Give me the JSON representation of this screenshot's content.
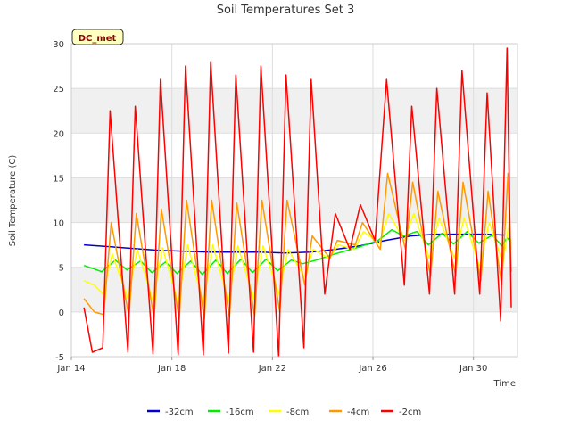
{
  "chart_data": {
    "type": "line",
    "title": "Soil Temperatures Set 3",
    "xlabel": "Time",
    "ylabel": "Soil Temperature (C)",
    "xlim": [
      "2024-01-14",
      "2024-01-31T18:00"
    ],
    "ylim": [
      -5,
      30
    ],
    "x_ticks": [
      {
        "date": "2024-01-14",
        "label": "Jan 14"
      },
      {
        "date": "2024-01-18",
        "label": "Jan 18"
      },
      {
        "date": "2024-01-22",
        "label": "Jan 22"
      },
      {
        "date": "2024-01-26",
        "label": "Jan 26"
      },
      {
        "date": "2024-01-30",
        "label": "Jan 30"
      }
    ],
    "y_ticks": [
      -5,
      0,
      5,
      10,
      15,
      20,
      25,
      30
    ],
    "grid": true,
    "banded_background": true,
    "legend_position": "bottom",
    "site_badge": "DC_met",
    "series": [
      {
        "name": "-32cm",
        "color": "#0000cc",
        "points": [
          [
            "2024-01-14T12:00",
            7.5
          ],
          [
            "2024-01-15T12:00",
            7.3
          ],
          [
            "2024-01-16T12:00",
            7.1
          ],
          [
            "2024-01-17T12:00",
            6.9
          ],
          [
            "2024-01-18T12:00",
            6.8
          ],
          [
            "2024-01-19T12:00",
            6.7
          ],
          [
            "2024-01-20T12:00",
            6.7
          ],
          [
            "2024-01-21T12:00",
            6.7
          ],
          [
            "2024-01-22T12:00",
            6.6
          ],
          [
            "2024-01-23T12:00",
            6.7
          ],
          [
            "2024-01-24T12:00",
            7.0
          ],
          [
            "2024-01-25T12:00",
            7.4
          ],
          [
            "2024-01-26T12:00",
            8.0
          ],
          [
            "2024-01-27T12:00",
            8.5
          ],
          [
            "2024-01-28T12:00",
            8.7
          ],
          [
            "2024-01-29T12:00",
            8.7
          ],
          [
            "2024-01-30T12:00",
            8.7
          ],
          [
            "2024-01-31T06:00",
            8.6
          ]
        ]
      },
      {
        "name": "-16cm",
        "color": "#00ee00",
        "points": [
          [
            "2024-01-14T12:00",
            5.2
          ],
          [
            "2024-01-14T22:00",
            4.8
          ],
          [
            "2024-01-15T05:00",
            4.5
          ],
          [
            "2024-01-15T18:00",
            5.8
          ],
          [
            "2024-01-16T05:00",
            4.7
          ],
          [
            "2024-01-16T18:00",
            5.7
          ],
          [
            "2024-01-17T05:00",
            4.4
          ],
          [
            "2024-01-17T18:00",
            5.6
          ],
          [
            "2024-01-18T05:00",
            4.3
          ],
          [
            "2024-01-18T18:00",
            5.7
          ],
          [
            "2024-01-19T05:00",
            4.2
          ],
          [
            "2024-01-19T18:00",
            5.8
          ],
          [
            "2024-01-20T05:00",
            4.3
          ],
          [
            "2024-01-20T18:00",
            5.9
          ],
          [
            "2024-01-21T05:00",
            4.4
          ],
          [
            "2024-01-21T18:00",
            5.9
          ],
          [
            "2024-01-22T05:00",
            4.6
          ],
          [
            "2024-01-22T18:00",
            5.8
          ],
          [
            "2024-01-23T05:00",
            5.4
          ],
          [
            "2024-01-23T18:00",
            5.8
          ],
          [
            "2024-01-24T12:00",
            6.5
          ],
          [
            "2024-01-25T12:00",
            7.3
          ],
          [
            "2024-01-26T05:00",
            8.0
          ],
          [
            "2024-01-26T18:00",
            9.2
          ],
          [
            "2024-01-27T05:00",
            8.5
          ],
          [
            "2024-01-27T18:00",
            9.0
          ],
          [
            "2024-01-28T05:00",
            7.5
          ],
          [
            "2024-01-28T18:00",
            8.8
          ],
          [
            "2024-01-29T05:00",
            7.6
          ],
          [
            "2024-01-29T18:00",
            9.0
          ],
          [
            "2024-01-30T05:00",
            7.7
          ],
          [
            "2024-01-30T18:00",
            8.6
          ],
          [
            "2024-01-31T03:00",
            7.4
          ],
          [
            "2024-01-31T08:00",
            8.3
          ],
          [
            "2024-01-31T12:00",
            7.8
          ]
        ]
      },
      {
        "name": "-8cm",
        "color": "#ffff00",
        "points": [
          [
            "2024-01-14T12:00",
            3.5
          ],
          [
            "2024-01-14T22:00",
            3.0
          ],
          [
            "2024-01-15T06:00",
            2.0
          ],
          [
            "2024-01-15T15:00",
            6.5
          ],
          [
            "2024-01-16T06:00",
            1.5
          ],
          [
            "2024-01-16T15:00",
            7.0
          ],
          [
            "2024-01-17T06:00",
            1.2
          ],
          [
            "2024-01-17T15:00",
            7.2
          ],
          [
            "2024-01-18T06:00",
            1.0
          ],
          [
            "2024-01-18T15:00",
            7.5
          ],
          [
            "2024-01-19T06:00",
            1.0
          ],
          [
            "2024-01-19T15:00",
            7.5
          ],
          [
            "2024-01-20T06:00",
            1.2
          ],
          [
            "2024-01-20T15:00",
            7.4
          ],
          [
            "2024-01-21T06:00",
            1.5
          ],
          [
            "2024-01-21T15:00",
            7.4
          ],
          [
            "2024-01-22T06:00",
            2.0
          ],
          [
            "2024-01-22T15:00",
            7.0
          ],
          [
            "2024-01-23T06:00",
            4.0
          ],
          [
            "2024-01-23T15:00",
            7.0
          ],
          [
            "2024-01-24T06:00",
            6.0
          ],
          [
            "2024-01-24T15:00",
            7.5
          ],
          [
            "2024-01-25T06:00",
            7.0
          ],
          [
            "2024-01-25T15:00",
            9.0
          ],
          [
            "2024-01-26T06:00",
            7.6
          ],
          [
            "2024-01-26T15:00",
            11.0
          ],
          [
            "2024-01-27T06:00",
            8.0
          ],
          [
            "2024-01-27T15:00",
            11.0
          ],
          [
            "2024-01-28T06:00",
            6.0
          ],
          [
            "2024-01-28T15:00",
            10.5
          ],
          [
            "2024-01-29T06:00",
            6.0
          ],
          [
            "2024-01-29T15:00",
            10.5
          ],
          [
            "2024-01-30T06:00",
            5.0
          ],
          [
            "2024-01-30T15:00",
            10.0
          ],
          [
            "2024-01-31T04:00",
            5.5
          ],
          [
            "2024-01-31T10:00",
            10.0
          ],
          [
            "2024-01-31T12:00",
            7.0
          ]
        ]
      },
      {
        "name": "-4cm",
        "color": "#ff9900",
        "points": [
          [
            "2024-01-14T12:00",
            1.5
          ],
          [
            "2024-01-14T22:00",
            0.0
          ],
          [
            "2024-01-15T07:00",
            -0.3
          ],
          [
            "2024-01-15T14:00",
            10.0
          ],
          [
            "2024-01-16T07:00",
            -0.5
          ],
          [
            "2024-01-16T14:00",
            11.0
          ],
          [
            "2024-01-17T07:00",
            -0.7
          ],
          [
            "2024-01-17T14:00",
            11.5
          ],
          [
            "2024-01-18T07:00",
            -0.8
          ],
          [
            "2024-01-18T14:00",
            12.5
          ],
          [
            "2024-01-19T07:00",
            -0.8
          ],
          [
            "2024-01-19T14:00",
            12.5
          ],
          [
            "2024-01-20T07:00",
            -0.6
          ],
          [
            "2024-01-20T14:00",
            12.2
          ],
          [
            "2024-01-21T07:00",
            -0.5
          ],
          [
            "2024-01-21T14:00",
            12.5
          ],
          [
            "2024-01-22T07:00",
            0.0
          ],
          [
            "2024-01-22T14:00",
            12.5
          ],
          [
            "2024-01-23T07:00",
            3.0
          ],
          [
            "2024-01-23T14:00",
            8.5
          ],
          [
            "2024-01-24T07:00",
            6.0
          ],
          [
            "2024-01-24T14:00",
            8.0
          ],
          [
            "2024-01-25T07:00",
            7.5
          ],
          [
            "2024-01-25T14:00",
            10.0
          ],
          [
            "2024-01-26T07:00",
            7.0
          ],
          [
            "2024-01-26T14:00",
            15.5
          ],
          [
            "2024-01-27T07:00",
            7.0
          ],
          [
            "2024-01-27T14:00",
            14.5
          ],
          [
            "2024-01-28T07:00",
            4.0
          ],
          [
            "2024-01-28T14:00",
            13.5
          ],
          [
            "2024-01-29T07:00",
            4.0
          ],
          [
            "2024-01-29T14:00",
            14.5
          ],
          [
            "2024-01-30T07:00",
            3.5
          ],
          [
            "2024-01-30T14:00",
            13.5
          ],
          [
            "2024-01-31T03:00",
            3.0
          ],
          [
            "2024-01-31T09:00",
            15.5
          ],
          [
            "2024-01-31T12:00",
            4.5
          ]
        ]
      },
      {
        "name": "-2cm",
        "color": "#ff0000",
        "points": [
          [
            "2024-01-14T12:00",
            0.5
          ],
          [
            "2024-01-14T20:00",
            -4.5
          ],
          [
            "2024-01-15T06:00",
            -4.0
          ],
          [
            "2024-01-15T13:00",
            22.5
          ],
          [
            "2024-01-16T06:00",
            -4.5
          ],
          [
            "2024-01-16T13:00",
            23.0
          ],
          [
            "2024-01-17T06:00",
            -4.7
          ],
          [
            "2024-01-17T13:00",
            26.0
          ],
          [
            "2024-01-18T06:00",
            -4.8
          ],
          [
            "2024-01-18T13:00",
            27.5
          ],
          [
            "2024-01-19T06:00",
            -4.8
          ],
          [
            "2024-01-19T13:00",
            28.0
          ],
          [
            "2024-01-20T06:00",
            -4.6
          ],
          [
            "2024-01-20T13:00",
            26.5
          ],
          [
            "2024-01-21T06:00",
            -4.5
          ],
          [
            "2024-01-21T13:00",
            27.5
          ],
          [
            "2024-01-22T06:00",
            -5.0
          ],
          [
            "2024-01-22T13:00",
            26.5
          ],
          [
            "2024-01-23T06:00",
            -4.0
          ],
          [
            "2024-01-23T13:00",
            26.0
          ],
          [
            "2024-01-24T02:00",
            2.0
          ],
          [
            "2024-01-24T12:00",
            11.0
          ],
          [
            "2024-01-25T02:00",
            7.0
          ],
          [
            "2024-01-25T12:00",
            12.0
          ],
          [
            "2024-01-26T02:00",
            8.0
          ],
          [
            "2024-01-26T13:00",
            26.0
          ],
          [
            "2024-01-27T06:00",
            3.0
          ],
          [
            "2024-01-27T13:00",
            23.0
          ],
          [
            "2024-01-28T06:00",
            2.0
          ],
          [
            "2024-01-28T13:00",
            25.0
          ],
          [
            "2024-01-29T06:00",
            2.0
          ],
          [
            "2024-01-29T13:00",
            27.0
          ],
          [
            "2024-01-30T06:00",
            2.0
          ],
          [
            "2024-01-30T13:00",
            24.5
          ],
          [
            "2024-01-31T02:00",
            -1.0
          ],
          [
            "2024-01-31T08:00",
            29.5
          ],
          [
            "2024-01-31T12:00",
            0.5
          ]
        ]
      }
    ]
  }
}
